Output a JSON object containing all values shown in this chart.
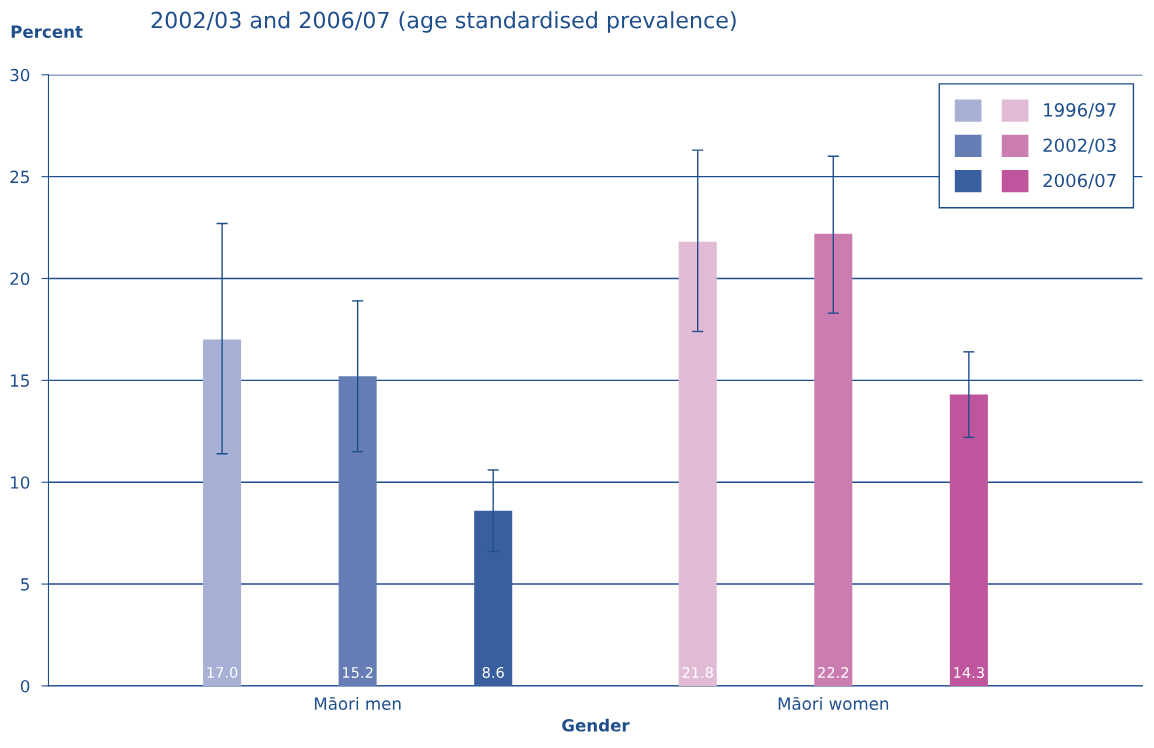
{
  "chart_data": {
    "type": "bar",
    "title": "2002/03 and 2006/07 (age standardised prevalence)",
    "xlabel": "Gender",
    "ylabel": "Percent",
    "categories": [
      "Māori men",
      "Māori women"
    ],
    "series": [
      {
        "name": "1996/97",
        "colors": [
          "#a8b0d5",
          "#e1bad5"
        ],
        "values": [
          17.0,
          21.8
        ],
        "value_labels": [
          "17.0",
          "21.8"
        ],
        "errors": [
          [
            11.4,
            22.7
          ],
          [
            17.4,
            26.3
          ]
        ]
      },
      {
        "name": "2002/03",
        "colors": [
          "#657db4",
          "#cb7db2"
        ],
        "values": [
          15.2,
          22.2
        ],
        "value_labels": [
          "15.2",
          "22.2"
        ],
        "errors": [
          [
            11.5,
            18.9
          ],
          [
            18.3,
            26.0
          ]
        ]
      },
      {
        "name": "2006/07",
        "colors": [
          "#3a5f9f",
          "#bf559c"
        ],
        "values": [
          8.6,
          14.3
        ],
        "value_labels": [
          "8.6",
          "14.3"
        ],
        "errors": [
          [
            6.6,
            10.6
          ],
          [
            12.2,
            16.4
          ]
        ]
      }
    ],
    "ylim": [
      0,
      30
    ],
    "yticks": [
      0,
      5,
      10,
      15,
      20,
      25,
      30
    ],
    "grid": "y",
    "legend": "top right"
  }
}
